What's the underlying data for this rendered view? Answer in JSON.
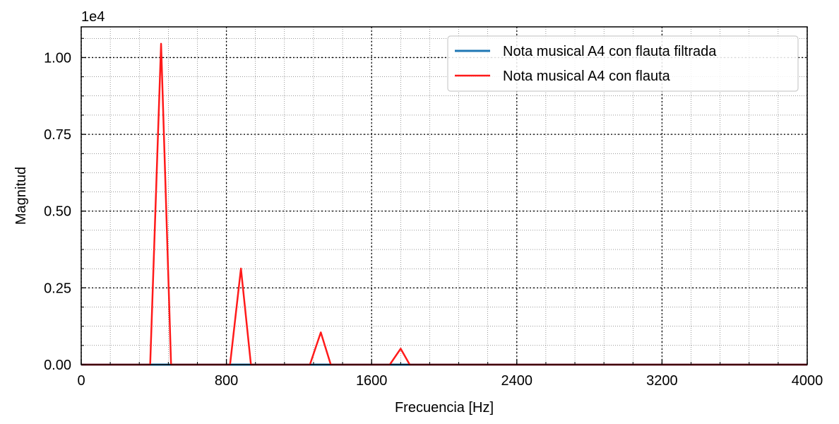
{
  "chart_data": {
    "type": "line",
    "xlabel": "Frecuencia [Hz]",
    "ylabel": "Magnitud",
    "offset_text": "1e4",
    "xlim": [
      0,
      4000
    ],
    "ylim": [
      0,
      1.1
    ],
    "xticks": [
      0,
      800,
      1600,
      2400,
      3200,
      4000
    ],
    "xtick_labels": [
      "0",
      "800",
      "1600",
      "2400",
      "3200",
      "4000"
    ],
    "yticks": [
      0,
      0.25,
      0.5,
      0.75,
      1.0
    ],
    "ytick_labels": [
      "0.00",
      "0.25",
      "0.50",
      "0.75",
      "1.00"
    ],
    "grid": true,
    "minor_grid": true,
    "legend_position": "top-right",
    "series": [
      {
        "name": "Nota musical A4 con flauta filtrada",
        "color": "#1f77b4",
        "x": [
          0,
          4000
        ],
        "y": [
          0,
          0
        ]
      },
      {
        "name": "Nota musical A4 con flauta",
        "color": "#ff1a1a",
        "x": [
          0,
          380,
          440,
          495,
          820,
          880,
          935,
          1260,
          1320,
          1375,
          1700,
          1760,
          1810,
          4000
        ],
        "y": [
          0,
          0,
          1.045,
          0,
          0,
          0.313,
          0,
          0,
          0.105,
          0,
          0,
          0.052,
          0,
          0
        ]
      }
    ]
  }
}
